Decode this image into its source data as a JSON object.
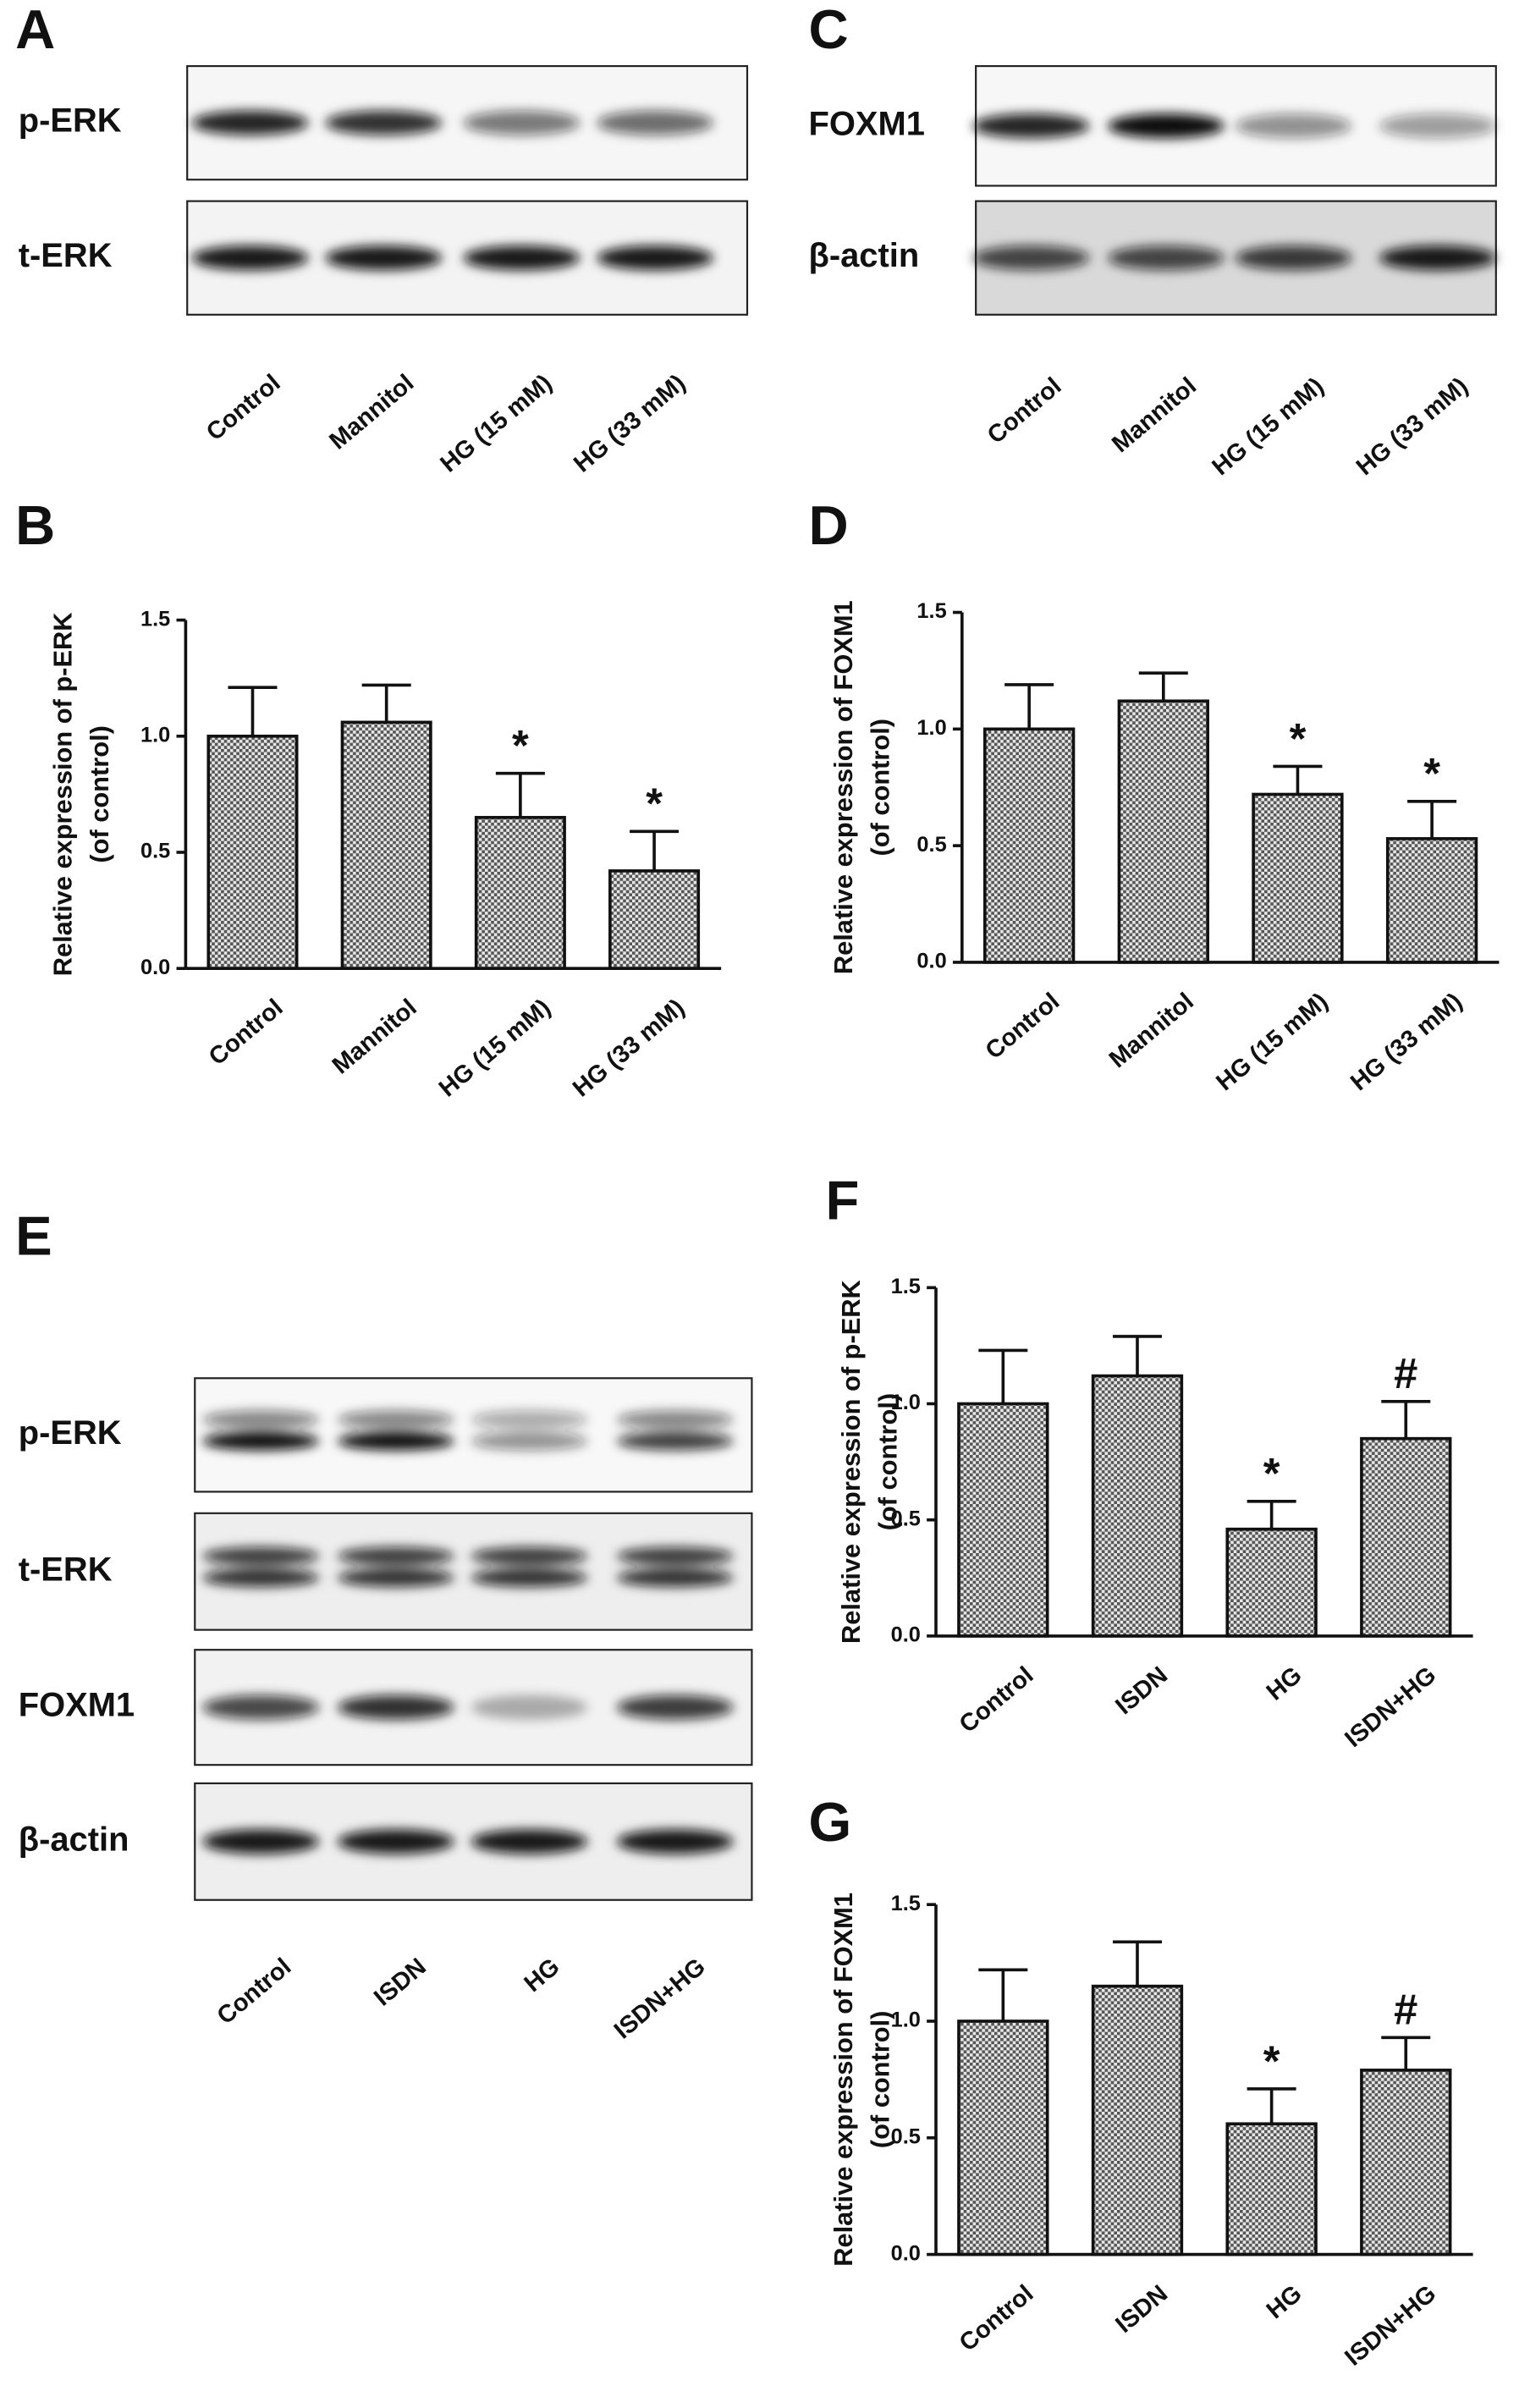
{
  "blots": [
    {
      "panel": "A",
      "rows": [
        "p-ERK",
        "t-ERK"
      ],
      "lanes": [
        "Control",
        "Mannitol",
        "HG (15 mM)",
        "HG (33 mM)"
      ]
    },
    {
      "panel": "C",
      "rows": [
        "FOXM1",
        "β-actin"
      ],
      "lanes": [
        "Control",
        "Mannitol",
        "HG (15 mM)",
        "HG (33 mM)"
      ]
    },
    {
      "panel": "E",
      "rows": [
        "p-ERK",
        "t-ERK",
        "FOXM1",
        "β-actin"
      ],
      "lanes": [
        "Control",
        "ISDN",
        "HG",
        "ISDN+HG"
      ]
    }
  ],
  "chart_data": [
    {
      "type": "bar",
      "panel": "B",
      "ylabel": [
        "Relative expression of p-ERK",
        "(of control)"
      ],
      "categories": [
        "Control",
        "Mannitol",
        "HG (15 mM)",
        "HG (33 mM)"
      ],
      "values": [
        1.0,
        1.06,
        0.65,
        0.42
      ],
      "errors": [
        0.21,
        0.16,
        0.19,
        0.17
      ],
      "labels": [
        null,
        null,
        "*",
        "*"
      ],
      "color": "#555555",
      "ylim": [
        0,
        1.5
      ],
      "yticks": [
        {
          "value": 0,
          "label": "0.0"
        },
        {
          "value": 0.5,
          "label": "0.5"
        },
        {
          "value": 1,
          "label": "1.0"
        },
        {
          "value": 1.5,
          "label": "1.5"
        }
      ]
    },
    {
      "type": "bar",
      "panel": "D",
      "ylabel": [
        "Relative expression of FOXM1",
        "(of control)"
      ],
      "categories": [
        "Control",
        "Mannitol",
        "HG (15 mM)",
        "HG (33 mM)"
      ],
      "values": [
        1.0,
        1.12,
        0.72,
        0.53
      ],
      "errors": [
        0.19,
        0.12,
        0.12,
        0.16
      ],
      "labels": [
        null,
        null,
        "*",
        "*"
      ],
      "color": "#555555",
      "ylim": [
        0,
        1.5
      ],
      "yticks": [
        {
          "value": 0,
          "label": "0.0"
        },
        {
          "value": 0.5,
          "label": "0.5"
        },
        {
          "value": 1,
          "label": "1.0"
        },
        {
          "value": 1.5,
          "label": "1.5"
        }
      ]
    },
    {
      "type": "bar",
      "panel": "F",
      "ylabel": [
        "Relative expression of  p-ERK",
        "(of control)"
      ],
      "categories": [
        "Control",
        "ISDN",
        "HG",
        "ISDN+HG"
      ],
      "values": [
        1.0,
        1.12,
        0.46,
        0.85
      ],
      "errors": [
        0.23,
        0.17,
        0.12,
        0.16
      ],
      "labels": [
        null,
        null,
        "*",
        "#"
      ],
      "color": "#555555",
      "ylim": [
        0,
        1.5
      ],
      "yticks": [
        {
          "value": 0,
          "label": "0.0"
        },
        {
          "value": 0.5,
          "label": "0.5"
        },
        {
          "value": 1,
          "label": "1.0"
        },
        {
          "value": 1.5,
          "label": "1.5"
        }
      ]
    },
    {
      "type": "bar",
      "panel": "G",
      "ylabel": [
        "Relative expression of FOXM1",
        "(of control)"
      ],
      "categories": [
        "Control",
        "ISDN",
        "HG",
        "ISDN+HG"
      ],
      "values": [
        1.0,
        1.15,
        0.56,
        0.79
      ],
      "errors": [
        0.22,
        0.19,
        0.15,
        0.14
      ],
      "labels": [
        null,
        null,
        "*",
        "#"
      ],
      "color": "#555555",
      "ylim": [
        0,
        1.5
      ],
      "yticks": [
        {
          "value": 0,
          "label": "0.0"
        },
        {
          "value": 0.5,
          "label": "0.5"
        },
        {
          "value": 1,
          "label": "1.0"
        },
        {
          "value": 1.5,
          "label": "1.5"
        }
      ]
    }
  ]
}
